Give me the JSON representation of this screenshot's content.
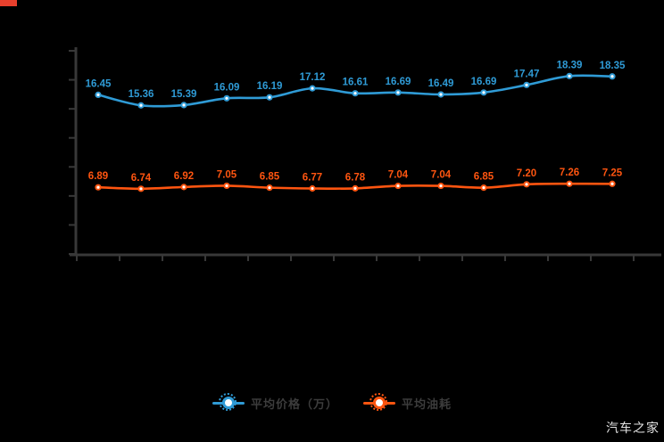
{
  "page": {
    "background": "#000000",
    "corner_mark_color": "#e8402d"
  },
  "watermark": {
    "text": "汽车之家"
  },
  "legend": {
    "position": "bottom",
    "items": [
      {
        "label": "平均价格（万）",
        "color": "#2f9bd6"
      },
      {
        "label": "平均油耗",
        "color": "#ff5510"
      }
    ]
  },
  "chart_data": {
    "type": "line",
    "title": "",
    "xlabel": "",
    "ylabel": "",
    "x_count": 13,
    "categories": [
      "",
      "",
      "",
      "",
      "",
      "",
      "",
      "",
      "",
      "",
      "",
      "",
      ""
    ],
    "series": [
      {
        "name": "平均价格（万）",
        "color": "#2f9bd6",
        "values": [
          16.45,
          15.36,
          15.39,
          16.09,
          16.19,
          17.12,
          16.61,
          16.69,
          16.49,
          16.69,
          17.47,
          18.39,
          18.35
        ]
      },
      {
        "name": "平均油耗",
        "color": "#ff5510",
        "values": [
          6.89,
          6.74,
          6.92,
          7.05,
          6.85,
          6.77,
          6.78,
          7.04,
          7.04,
          6.85,
          7.2,
          7.26,
          7.25
        ]
      }
    ],
    "ylim": [
      0,
      21
    ],
    "y_tick_count": 8,
    "grid": false,
    "smooth": true,
    "axis_color": "#383838",
    "legend_position": "bottom",
    "data_label_decimals": 2
  }
}
